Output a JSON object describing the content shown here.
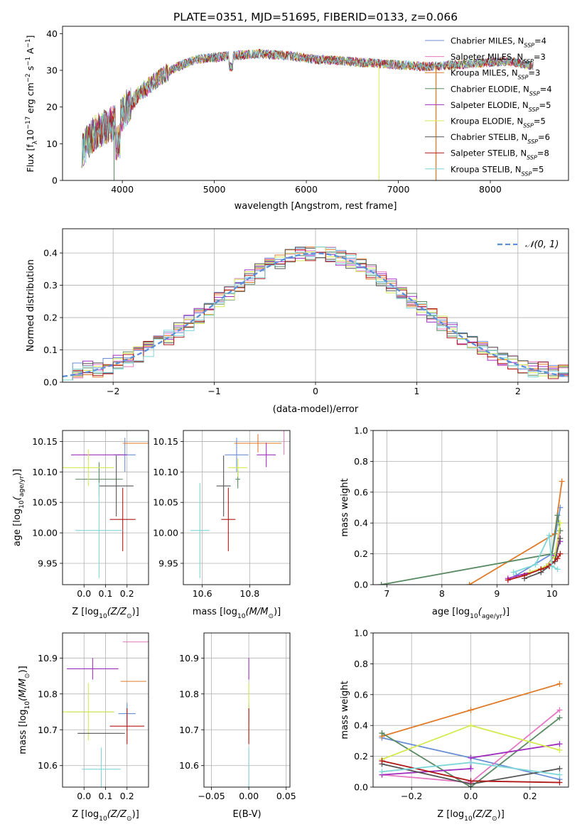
{
  "figure": {
    "title": "PLATE=0351, MJD=51695, FIBERID=0133, z=0.066"
  },
  "colors": {
    "Chabrier MILES": "#6a8fd6",
    "Salpeter MILES": "#e377c2",
    "Kroupa MILES": "#e07b2a",
    "Chabrier ELODIE": "#5a8a63",
    "Salpeter ELODIE": "#a02fc0",
    "Kroupa ELODIE": "#d4ea50",
    "Chabrier STELIB": "#555555",
    "Salpeter STELIB": "#b01818",
    "Kroupa STELIB": "#7fd6d8",
    "normal_fit": "#5b8fd8"
  },
  "chart_data": [
    {
      "id": "spectrum",
      "type": "line",
      "title": "PLATE=0351, MJD=51695, FIBERID=0133, z=0.066",
      "xlabel": "wavelength [Angstrom, rest frame]",
      "ylabel": "Flux [f",
      "ylabel_parts": [
        "Flux [f",
        "λ",
        "10",
        "−17",
        " erg cm",
        "−2",
        " s",
        "−1",
        " A",
        "−1",
        "]"
      ],
      "xlim": [
        3350,
        8850
      ],
      "ylim": [
        0,
        42
      ],
      "xticks": [
        4000,
        5000,
        6000,
        7000,
        8000
      ],
      "yticks": [
        0,
        10,
        20,
        30,
        40
      ],
      "grid": false,
      "legend_position": "top-right",
      "legend": [
        {
          "name": "Chabrier MILES",
          "nssp": "4"
        },
        {
          "name": "Salpeter MILES",
          "nssp": "3"
        },
        {
          "name": "Kroupa MILES",
          "nssp": "3"
        },
        {
          "name": "Chabrier ELODIE",
          "nssp": "4"
        },
        {
          "name": "Salpeter ELODIE",
          "nssp": "5"
        },
        {
          "name": "Kroupa ELODIE",
          "nssp": "5"
        },
        {
          "name": "Chabrier STELIB",
          "nssp": "6"
        },
        {
          "name": "Salpeter STELIB",
          "nssp": "8"
        },
        {
          "name": "Kroupa STELIB",
          "nssp": "5"
        }
      ],
      "spectrum_profile": {
        "x": [
          3550,
          3700,
          3850,
          3950,
          4050,
          4200,
          4400,
          4600,
          4800,
          5000,
          5200,
          5500,
          5800,
          6100,
          6400,
          6700,
          7000,
          7300,
          7600,
          7900,
          8200,
          8500
        ],
        "y": [
          8,
          13,
          15,
          16,
          20,
          24,
          28,
          31,
          33,
          33.5,
          34,
          34.5,
          34,
          33,
          32.5,
          32,
          31.5,
          31,
          31.5,
          32,
          32.5,
          31
        ]
      }
    },
    {
      "id": "residuals",
      "type": "line",
      "xlabel": "(data-model)/error",
      "ylabel": "Normed distribution",
      "xlim": [
        -2.5,
        2.5
      ],
      "ylim": [
        0,
        0.475
      ],
      "xticks": [
        -2,
        -1,
        0,
        1,
        2
      ],
      "yticks": [
        0.0,
        0.1,
        0.2,
        0.3,
        0.4
      ],
      "grid": true,
      "legend_position": "top-right",
      "legend": [
        {
          "name": "𝒩(0, 1)"
        }
      ],
      "normal": {
        "mean": 0,
        "sigma": 1
      }
    },
    {
      "id": "age_vs_Z",
      "type": "scatter",
      "xlabel_parts": [
        "Z [log",
        "10",
        "(Z/Z",
        "⊙",
        ")]"
      ],
      "ylabel_parts": [
        "age  [log",
        "10",
        "(",
        "age/yr",
        ")]"
      ],
      "xlim": [
        -0.1,
        0.3
      ],
      "ylim": [
        9.915,
        10.168
      ],
      "xticks": [
        0.0,
        0.1,
        0.2
      ],
      "yticks": [
        9.95,
        10.0,
        10.05,
        10.1,
        10.15
      ],
      "grid": true,
      "points": [
        {
          "model": "Chabrier MILES",
          "x": 0.19,
          "y": 10.128,
          "xerr": 0.05,
          "yerr": 0.028
        },
        {
          "model": "Salpeter MILES",
          "x": 0.18,
          "y": 10.148,
          "xerr": 0.0,
          "yerr": 0.0
        },
        {
          "model": "Kroupa MILES",
          "x": 0.24,
          "y": 10.147,
          "xerr": 0.06,
          "yerr": 0.0
        },
        {
          "model": "Chabrier ELODIE",
          "x": 0.07,
          "y": 10.088,
          "xerr": 0.11,
          "yerr": 0.028
        },
        {
          "model": "Salpeter ELODIE",
          "x": 0.07,
          "y": 10.128,
          "xerr": 0.13,
          "yerr": 0.0
        },
        {
          "model": "Kroupa ELODIE",
          "x": 0.02,
          "y": 10.107,
          "xerr": 0.12,
          "yerr": 0.03
        },
        {
          "model": "Chabrier STELIB",
          "x": 0.15,
          "y": 10.077,
          "xerr": 0.08,
          "yerr": 0.05
        },
        {
          "model": "Salpeter STELIB",
          "x": 0.18,
          "y": 10.022,
          "xerr": 0.06,
          "yerr": 0.052
        },
        {
          "model": "Kroupa STELIB",
          "x": 0.07,
          "y": 10.004,
          "xerr": 0.11,
          "yerr": 0.078
        }
      ]
    },
    {
      "id": "age_vs_mass",
      "type": "scatter",
      "xlabel_parts": [
        "mass [log",
        "10",
        "(M/M",
        "⊙",
        ")]"
      ],
      "xlim": [
        10.52,
        10.97
      ],
      "ylim": [
        9.915,
        10.168
      ],
      "xticks": [
        10.6,
        10.8
      ],
      "yticks": [
        9.95,
        10.0,
        10.05,
        10.1,
        10.15
      ],
      "grid": true,
      "points": [
        {
          "model": "Chabrier MILES",
          "x": 10.745,
          "y": 10.128,
          "xerr": 0.05,
          "yerr": 0.028
        },
        {
          "model": "Salpeter MILES",
          "x": 10.945,
          "y": 10.148,
          "xerr": 0.0,
          "yerr": 0.02
        },
        {
          "model": "Kroupa MILES",
          "x": 10.835,
          "y": 10.147,
          "xerr": 0.1,
          "yerr": 0.015
        },
        {
          "model": "Chabrier ELODIE",
          "x": 10.75,
          "y": 10.088,
          "xerr": 0.01,
          "yerr": 0.015
        },
        {
          "model": "Salpeter ELODIE",
          "x": 10.87,
          "y": 10.128,
          "xerr": 0.04,
          "yerr": 0.02
        },
        {
          "model": "Kroupa ELODIE",
          "x": 10.75,
          "y": 10.107,
          "xerr": 0.04,
          "yerr": 0.015
        },
        {
          "model": "Chabrier STELIB",
          "x": 10.69,
          "y": 10.077,
          "xerr": 0.03,
          "yerr": 0.05
        },
        {
          "model": "Salpeter STELIB",
          "x": 10.71,
          "y": 10.022,
          "xerr": 0.03,
          "yerr": 0.052
        },
        {
          "model": "Kroupa STELIB",
          "x": 10.59,
          "y": 10.004,
          "xerr": 0.04,
          "yerr": 0.078
        }
      ]
    },
    {
      "id": "weight_vs_age",
      "type": "line",
      "xlabel_parts": [
        "age  [log",
        "10",
        "(",
        "age/yr",
        ")]"
      ],
      "ylabel": "mass weight",
      "xlim": [
        6.75,
        10.3
      ],
      "ylim": [
        0,
        1.0
      ],
      "xticks": [
        7,
        8,
        9,
        10
      ],
      "yticks": [
        0.0,
        0.2,
        0.4,
        0.6,
        0.8,
        1.0
      ],
      "grid": true,
      "series": [
        {
          "model": "Chabrier MILES",
          "x": [
            9.35,
            10.0,
            10.15
          ],
          "y": [
            0.06,
            0.2,
            0.5
          ]
        },
        {
          "model": "Salpeter MILES",
          "x": [
            9.8,
            10.05,
            10.15
          ],
          "y": [
            0.1,
            0.15,
            0.35
          ]
        },
        {
          "model": "Kroupa MILES",
          "x": [
            8.5,
            10.05,
            10.18
          ],
          "y": [
            0.0,
            0.33,
            0.67
          ]
        },
        {
          "model": "Chabrier ELODIE",
          "x": [
            6.9,
            10.0,
            10.1,
            10.15
          ],
          "y": [
            0.0,
            0.2,
            0.45,
            0.35
          ]
        },
        {
          "model": "Salpeter ELODIE",
          "x": [
            9.2,
            9.6,
            9.9,
            10.05,
            10.15
          ],
          "y": [
            0.04,
            0.08,
            0.12,
            0.19,
            0.28
          ]
        },
        {
          "model": "Kroupa ELODIE",
          "x": [
            9.6,
            9.9,
            10.05,
            10.15
          ],
          "y": [
            0.08,
            0.12,
            0.18,
            0.4
          ]
        },
        {
          "model": "Chabrier STELIB",
          "x": [
            9.5,
            9.8,
            9.95,
            10.05,
            10.15
          ],
          "y": [
            0.04,
            0.08,
            0.12,
            0.15,
            0.3
          ]
        },
        {
          "model": "Salpeter STELIB",
          "x": [
            9.2,
            9.5,
            9.8,
            9.95,
            10.1,
            10.15
          ],
          "y": [
            0.03,
            0.06,
            0.1,
            0.12,
            0.17,
            0.2
          ]
        },
        {
          "model": "Kroupa STELIB",
          "x": [
            9.3,
            9.7,
            9.95,
            10.0,
            10.1
          ],
          "y": [
            0.08,
            0.13,
            0.32,
            0.12,
            0.1
          ]
        }
      ]
    },
    {
      "id": "mass_vs_Z",
      "type": "scatter",
      "xlabel_parts": [
        "Z [log",
        "10",
        "(Z/Z",
        "⊙",
        ")]"
      ],
      "ylabel_parts": [
        "mass [log",
        "10",
        "(M/M",
        "⊙",
        ")]"
      ],
      "xlim": [
        -0.1,
        0.3
      ],
      "ylim": [
        10.54,
        10.97
      ],
      "xticks": [
        0.0,
        0.1,
        0.2
      ],
      "yticks": [
        10.6,
        10.7,
        10.8,
        10.9
      ],
      "grid": true,
      "points": [
        {
          "model": "Chabrier MILES",
          "x": 0.2,
          "y": 10.745,
          "xerr": 0.04,
          "yerr": 0.03
        },
        {
          "model": "Salpeter MILES",
          "x": 0.24,
          "y": 10.945,
          "xerr": 0.06,
          "yerr": 0.0
        },
        {
          "model": "Kroupa MILES",
          "x": 0.23,
          "y": 10.835,
          "xerr": 0.06,
          "yerr": 0.0
        },
        {
          "model": "Chabrier ELODIE",
          "x": 0.03,
          "y": 10.75,
          "xerr": 0.11,
          "yerr": 0.0
        },
        {
          "model": "Salpeter ELODIE",
          "x": 0.04,
          "y": 10.87,
          "xerr": 0.12,
          "yerr": 0.03
        },
        {
          "model": "Kroupa ELODIE",
          "x": 0.02,
          "y": 10.75,
          "xerr": 0.12,
          "yerr": 0.08
        },
        {
          "model": "Chabrier STELIB",
          "x": 0.08,
          "y": 10.69,
          "xerr": 0.11,
          "yerr": 0.0
        },
        {
          "model": "Salpeter STELIB",
          "x": 0.2,
          "y": 10.71,
          "xerr": 0.08,
          "yerr": 0.05
        },
        {
          "model": "Kroupa STELIB",
          "x": 0.08,
          "y": 10.59,
          "xerr": 0.09,
          "yerr": 0.06
        }
      ]
    },
    {
      "id": "mass_vs_EBV",
      "type": "scatter",
      "xlabel": "E(B-V)",
      "xlim": [
        -0.06,
        0.055
      ],
      "ylim": [
        10.54,
        10.97
      ],
      "xticks": [
        -0.05,
        0.0,
        0.05
      ],
      "yticks": [
        10.6,
        10.7,
        10.8,
        10.9
      ],
      "grid": true,
      "points": [
        {
          "model": "Chabrier MILES",
          "x": 0.0,
          "y": 10.745,
          "yerr": 0.03
        },
        {
          "model": "Salpeter MILES",
          "x": 0.0,
          "y": 10.945,
          "yerr": 0.0
        },
        {
          "model": "Kroupa MILES",
          "x": 0.0,
          "y": 10.835,
          "yerr": 0.0
        },
        {
          "model": "Chabrier ELODIE",
          "x": 0.0,
          "y": 10.75,
          "yerr": 0.0
        },
        {
          "model": "Salpeter ELODIE",
          "x": 0.0,
          "y": 10.87,
          "yerr": 0.03
        },
        {
          "model": "Kroupa ELODIE",
          "x": 0.0,
          "y": 10.75,
          "yerr": 0.08
        },
        {
          "model": "Chabrier STELIB",
          "x": 0.0,
          "y": 10.69,
          "yerr": 0.0
        },
        {
          "model": "Salpeter STELIB",
          "x": 0.0,
          "y": 10.71,
          "yerr": 0.05
        },
        {
          "model": "Kroupa STELIB",
          "x": 0.0,
          "y": 10.59,
          "yerr": 0.06
        }
      ]
    },
    {
      "id": "weight_vs_Z",
      "type": "line",
      "xlabel_parts": [
        "Z [log",
        "10",
        "(Z/Z",
        "⊙",
        ")]"
      ],
      "ylabel": "mass weight",
      "xlim": [
        -0.33,
        0.33
      ],
      "ylim": [
        0,
        1.0
      ],
      "xticks": [
        -0.2,
        0.0,
        0.2
      ],
      "yticks": [
        0.0,
        0.2,
        0.4,
        0.6,
        0.8,
        1.0
      ],
      "grid": true,
      "series": [
        {
          "model": "Chabrier MILES",
          "x": [
            -0.3,
            0.0,
            0.3
          ],
          "y": [
            0.32,
            0.19,
            0.05
          ]
        },
        {
          "model": "Salpeter MILES",
          "x": [
            -0.3,
            0.0,
            0.3
          ],
          "y": [
            0.08,
            0.03,
            0.5
          ]
        },
        {
          "model": "Kroupa MILES",
          "x": [
            -0.3,
            0.0,
            0.3
          ],
          "y": [
            0.33,
            0.5,
            0.67
          ]
        },
        {
          "model": "Chabrier ELODIE",
          "x": [
            -0.3,
            -0.3,
            0.0,
            0.3
          ],
          "y": [
            0.35,
            0.35,
            0.0,
            0.45
          ]
        },
        {
          "model": "Salpeter ELODIE",
          "x": [
            -0.3,
            0.0,
            0.0,
            0.3
          ],
          "y": [
            0.08,
            0.12,
            0.19,
            0.28
          ]
        },
        {
          "model": "Kroupa ELODIE",
          "x": [
            -0.3,
            0.0,
            0.3
          ],
          "y": [
            0.18,
            0.4,
            0.24
          ]
        },
        {
          "model": "Chabrier STELIB",
          "x": [
            -0.3,
            0.0,
            0.3
          ],
          "y": [
            0.15,
            0.02,
            0.12
          ]
        },
        {
          "model": "Salpeter STELIB",
          "x": [
            -0.3,
            0.0,
            0.3
          ],
          "y": [
            0.17,
            0.04,
            0.03
          ]
        },
        {
          "model": "Kroupa STELIB",
          "x": [
            -0.3,
            0.0,
            0.3
          ],
          "y": [
            0.1,
            0.16,
            0.08
          ]
        }
      ]
    }
  ]
}
